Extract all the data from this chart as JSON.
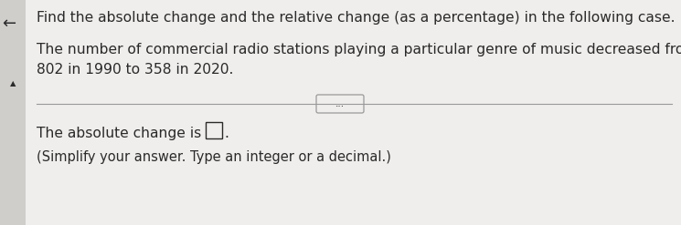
{
  "bg_color": "#e8e8e8",
  "panel_color": "#f0eeec",
  "line_color": "#999999",
  "text_color": "#2a2a2a",
  "line1": "Find the absolute change and the relative change (as a percentage) in the following case.",
  "line2a": "The number of commercial radio stations playing a particular genre of music decreased from",
  "line2b": "802 in 1990 to 358 in 2020.",
  "line4a": "The absolute change is ",
  "line4b": ".",
  "line5": "(Simplify your answer. Type an integer or a decimal.)",
  "dots": "...",
  "font_size_main": 11.2,
  "font_size_small": 10.5,
  "left_arrow": "←",
  "triangle": "▲"
}
